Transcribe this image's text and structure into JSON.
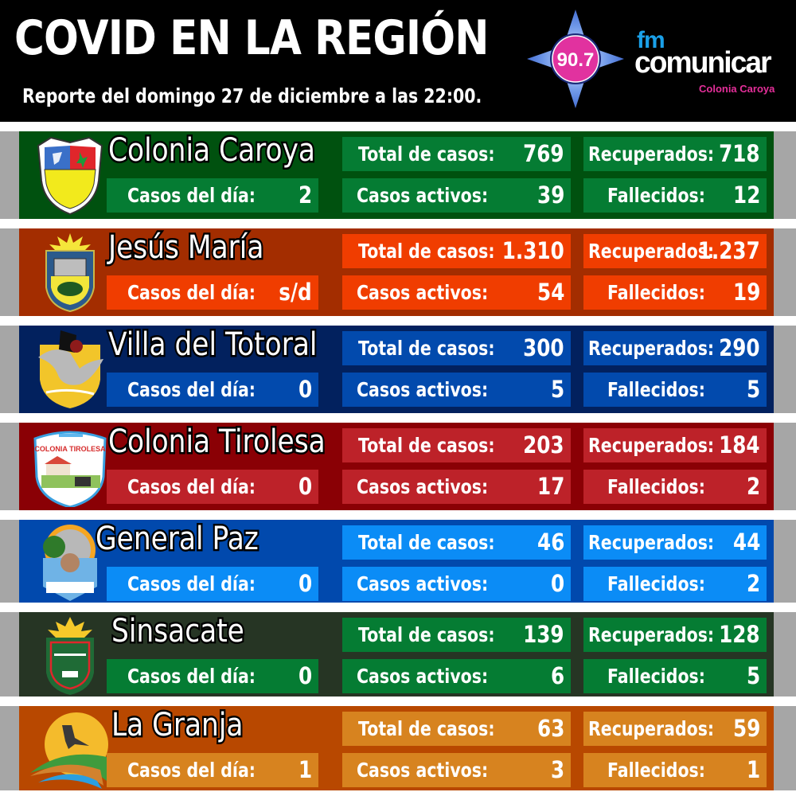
{
  "header": {
    "title": "COVID EN LA REGIÓN",
    "subtitle": "Reporte del domingo 27 de diciembre a las 22:00.",
    "logo": {
      "frequency": "90.7",
      "fm": "fm",
      "name": "comunicar",
      "town": "Colonia Caroya",
      "icon": "radio-star-logo-icon"
    }
  },
  "labels": {
    "day": "Casos del día:",
    "total": "Total de casos:",
    "active": "Casos activos:",
    "recovered": "Recuperados:",
    "deaths": "Fallecidos:"
  },
  "towns": [
    {
      "name": "Colonia Caroya",
      "emblem": "colonia-caroya-shield-icon",
      "day": "2",
      "total": "769",
      "active": "39",
      "recovered": "718",
      "deaths": "12",
      "colors": {
        "panel": "#00510f",
        "box": "#057c33"
      }
    },
    {
      "name": "Jesús María",
      "emblem": "jesus-maria-shield-icon",
      "day": "s/d",
      "total": "1.310",
      "active": "54",
      "recovered": "1.237",
      "deaths": "19",
      "colors": {
        "panel": "#a32d00",
        "box": "#f03d00"
      }
    },
    {
      "name": "Villa del Totoral",
      "emblem": "villa-del-totoral-shield-icon",
      "day": "0",
      "total": "300",
      "active": "5",
      "recovered": "290",
      "deaths": "5",
      "colors": {
        "panel": "#02215e",
        "box": "#024aad"
      }
    },
    {
      "name": "Colonia Tirolesa",
      "emblem": "colonia-tirolesa-shield-icon",
      "day": "0",
      "total": "203",
      "active": "17",
      "recovered": "184",
      "deaths": "2",
      "colors": {
        "panel": "#8a0005",
        "box": "#bd2229"
      }
    },
    {
      "name": "General Paz",
      "emblem": "general-paz-shield-icon",
      "day": "0",
      "total": "46",
      "active": "0",
      "recovered": "44",
      "deaths": "2",
      "colors": {
        "panel": "#0149ad",
        "box": "#0b8cf6"
      }
    },
    {
      "name": "Sinsacate",
      "emblem": "sinsacate-shield-icon",
      "day": "0",
      "total": "139",
      "active": "6",
      "recovered": "128",
      "deaths": "5",
      "colors": {
        "panel": "#263524",
        "box": "#057c33"
      }
    },
    {
      "name": "La Granja",
      "emblem": "la-granja-bird-icon",
      "day": "1",
      "total": "63",
      "active": "3",
      "recovered": "59",
      "deaths": "1",
      "colors": {
        "panel": "#b84800",
        "box": "#d7831f"
      }
    }
  ]
}
